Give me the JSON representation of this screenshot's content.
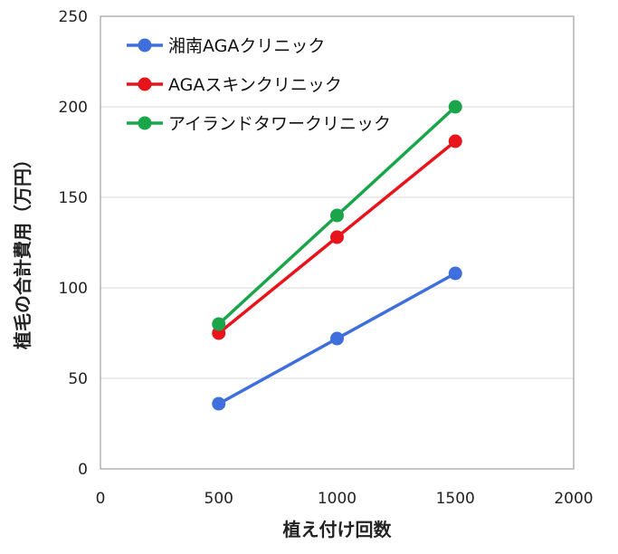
{
  "chart_data": {
    "type": "line",
    "title": "",
    "xlabel": "植え付け回数",
    "ylabel": "植毛の合計費用（万円）",
    "xlim": [
      0,
      2000
    ],
    "ylim": [
      0,
      250
    ],
    "xticks": [
      0,
      500,
      1000,
      1500,
      2000
    ],
    "yticks": [
      0,
      50,
      100,
      150,
      200,
      250
    ],
    "xtick_labels": [
      "0",
      "500",
      "1000",
      "1500",
      "2000"
    ],
    "ytick_labels": [
      "0",
      "50",
      "100",
      "150",
      "200",
      "250"
    ],
    "grid": "horizontal",
    "legend_position": "top-left",
    "series": [
      {
        "name": "湘南AGAクリニック",
        "color": "#3f6fdd",
        "x": [
          500,
          1000,
          1500
        ],
        "y": [
          36,
          72,
          108
        ]
      },
      {
        "name": "AGAスキンクリニック",
        "color": "#e8141b",
        "x": [
          500,
          1000,
          1500
        ],
        "y": [
          75,
          128,
          181
        ]
      },
      {
        "name": "アイランドタワークリニック",
        "color": "#1aa54b",
        "x": [
          500,
          1000,
          1500
        ],
        "y": [
          80,
          140,
          200
        ]
      }
    ]
  }
}
